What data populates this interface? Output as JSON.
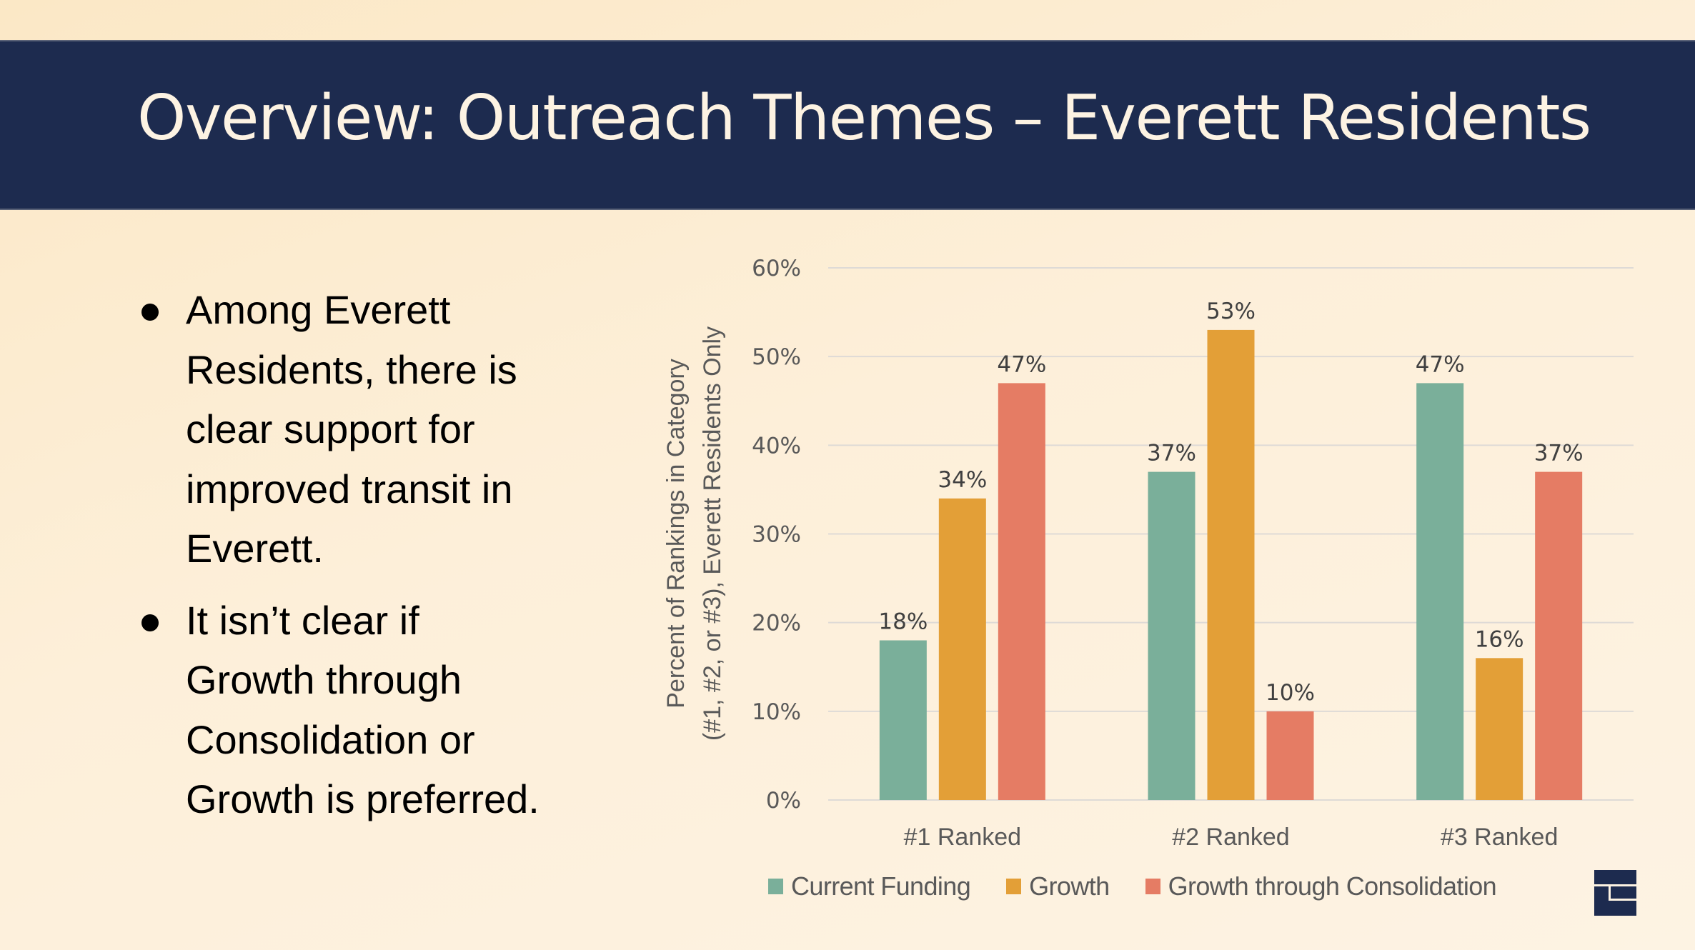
{
  "header": {
    "title": "Overview: Outreach Themes – Everett Residents",
    "band_color": "#1d2b4f",
    "title_color": "#fdf3e3"
  },
  "bullets": [
    "Among Everett Residents, there is clear support for improved transit in Everett.",
    "It isn’t clear if Growth through Consolidation or Growth is preferred."
  ],
  "bullet_lines": [
    [
      "Among Everett",
      "Residents, there is",
      "clear support for",
      "improved transit in",
      "Everett."
    ],
    [
      "It isn’t clear if",
      "Growth through",
      "Consolidation or",
      "Growth is preferred."
    ]
  ],
  "logo": {
    "icon": "organization-logo-icon",
    "color": "#1d2b4f"
  },
  "chart_data": {
    "type": "bar",
    "title": "",
    "xlabel": "",
    "ylabel": "Percent of Rankings in Category (#1, #2, or #3), Everett Residents Only",
    "ylabel_lines": [
      "Percent of Rankings in Category",
      "(#1, #2, or #3), Everett Residents Only"
    ],
    "categories": [
      "#1 Ranked",
      "#2 Ranked",
      "#3 Ranked"
    ],
    "series": [
      {
        "name": "Current Funding",
        "color": "#7aaf9a",
        "values": [
          18,
          37,
          47
        ],
        "labels": [
          "18%",
          "37%",
          "47%"
        ]
      },
      {
        "name": "Growth",
        "color": "#e39f37",
        "values": [
          34,
          53,
          16
        ],
        "labels": [
          "34%",
          "53%",
          "16%"
        ]
      },
      {
        "name": "Growth through Consolidation",
        "color": "#e57c64",
        "values": [
          47,
          10,
          37
        ],
        "labels": [
          "47%",
          "10%",
          "37%"
        ]
      }
    ],
    "ylim": [
      0,
      60
    ],
    "yticks": [
      0,
      10,
      20,
      30,
      40,
      50,
      60
    ],
    "ytick_labels": [
      "0%",
      "10%",
      "20%",
      "30%",
      "40%",
      "50%",
      "60%"
    ],
    "grid": true,
    "legend": "bottom",
    "data_labels": true
  }
}
